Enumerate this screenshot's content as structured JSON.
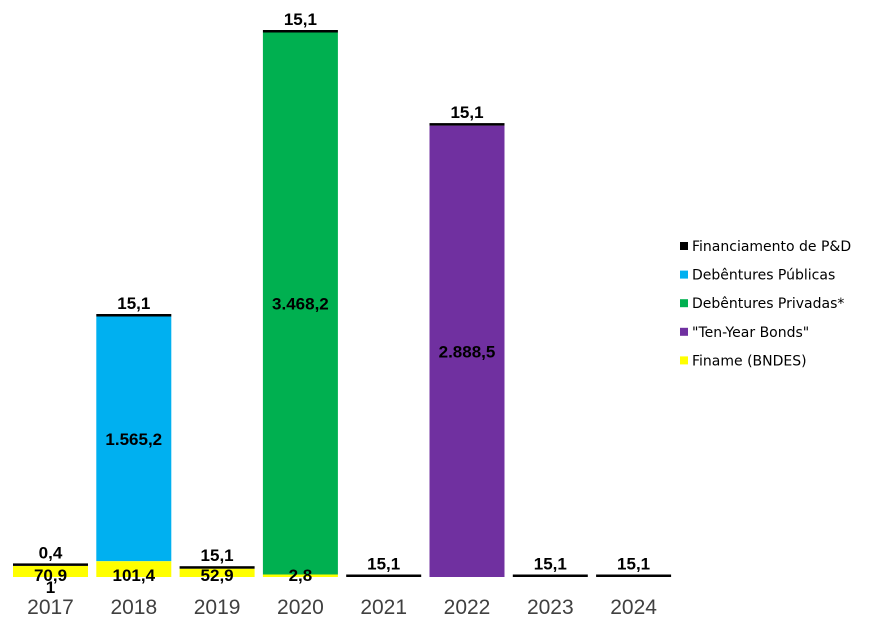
{
  "chart_data": {
    "type": "bar",
    "stacked": true,
    "categories": [
      "2017",
      "2018",
      "2019",
      "2020",
      "2021",
      "2022",
      "2023",
      "2024"
    ],
    "series": [
      {
        "name": "Finame (BNDES)",
        "color": "#FFFF00",
        "values": [
          70.9,
          101.4,
          52.9,
          2.8,
          0,
          0,
          0,
          0
        ]
      },
      {
        "name": "\"Ten-Year Bonds\"",
        "color": "#7030A0",
        "values": [
          0,
          0,
          0,
          0,
          0,
          2888.5,
          0,
          0
        ]
      },
      {
        "name": "Debêntures Privadas*",
        "color": "#00B050",
        "values": [
          0,
          0,
          0,
          3468.2,
          0,
          0,
          0,
          0
        ]
      },
      {
        "name": "Debêntures Públicas",
        "color": "#00B0F0",
        "values": [
          0,
          1565.2,
          0,
          0,
          0,
          0,
          0,
          0
        ]
      },
      {
        "name": "Financiamento de P&D",
        "color": "#000000",
        "values": [
          0.4,
          15.1,
          15.1,
          15.1,
          15.1,
          15.1,
          15.1,
          15.1
        ]
      }
    ],
    "ylim": [
      0,
      3500
    ],
    "grid": false,
    "legend": "right",
    "title": "",
    "xlabel": "",
    "ylabel": "",
    "labels": [
      {
        "text": "0,4",
        "cat": 0,
        "anchor": "top"
      },
      {
        "text": "70,9",
        "cat": 0,
        "anchor": "yellow"
      },
      {
        "text": "1",
        "cat": 0,
        "anchor": "below"
      },
      {
        "text": "15,1",
        "cat": 1,
        "anchor": "top"
      },
      {
        "text": "1.565,2",
        "cat": 1,
        "anchor": "blue"
      },
      {
        "text": "101,4",
        "cat": 1,
        "anchor": "yellow"
      },
      {
        "text": "15,1",
        "cat": 2,
        "anchor": "top"
      },
      {
        "text": "52,9",
        "cat": 2,
        "anchor": "yellow"
      },
      {
        "text": "15,1",
        "cat": 3,
        "anchor": "top"
      },
      {
        "text": "3.468,2",
        "cat": 3,
        "anchor": "green"
      },
      {
        "text": "2,8",
        "cat": 3,
        "anchor": "yellow"
      },
      {
        "text": "15,1",
        "cat": 4,
        "anchor": "top"
      },
      {
        "text": "15,1",
        "cat": 5,
        "anchor": "top"
      },
      {
        "text": "2.888,5",
        "cat": 5,
        "anchor": "purple"
      },
      {
        "text": "15,1",
        "cat": 6,
        "anchor": "top"
      },
      {
        "text": "15,1",
        "cat": 7,
        "anchor": "top"
      }
    ],
    "legend_order": [
      "Financiamento de P&D",
      "Debêntures Públicas",
      "Debêntures Privadas*",
      "\"Ten-Year Bonds\"",
      "Finame (BNDES)"
    ]
  }
}
